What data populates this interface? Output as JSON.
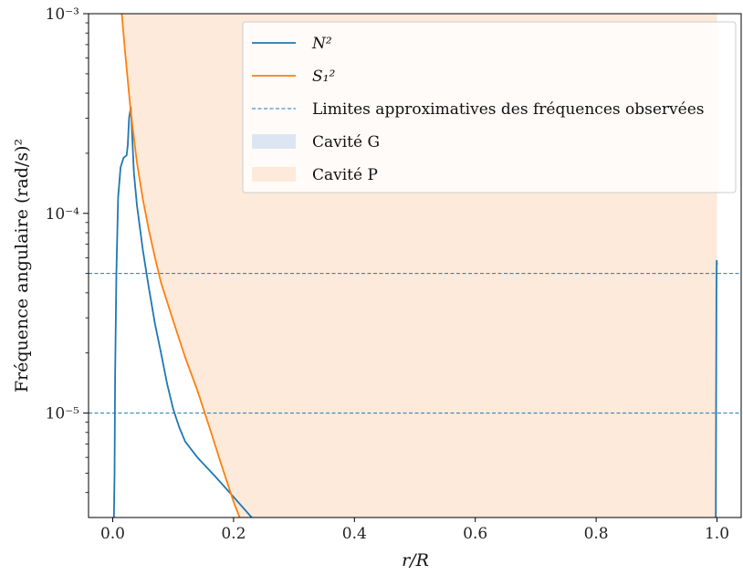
{
  "chart_data": {
    "type": "line",
    "xlabel": "r/R",
    "ylabel": "Fréquence angulaire (rad/s)²",
    "xlim": [
      -0.04,
      1.04
    ],
    "ylim": [
      3e-06,
      0.001
    ],
    "yscale": "log",
    "x_ticks": [
      0.0,
      0.2,
      0.4,
      0.6,
      0.8,
      1.0
    ],
    "x_tick_labels": [
      "0.0",
      "0.2",
      "0.4",
      "0.6",
      "0.8",
      "1.0"
    ],
    "y_major_ticks": [
      1e-05,
      0.0001,
      0.001
    ],
    "y_tick_labels": [
      "10⁻⁵",
      "10⁻⁴",
      "10⁻³"
    ],
    "grid": false,
    "legend_position": "upper right",
    "series": [
      {
        "name": "N²",
        "color": "#1f77b4",
        "style": "solid",
        "points": [
          [
            0.002,
            3e-06
          ],
          [
            0.003,
            5e-06
          ],
          [
            0.004,
            1.5e-05
          ],
          [
            0.006,
            5e-05
          ],
          [
            0.009,
            0.00012
          ],
          [
            0.013,
            0.00017
          ],
          [
            0.018,
            0.00019
          ],
          [
            0.023,
            0.000195
          ],
          [
            0.025,
            0.00022
          ],
          [
            0.027,
            0.0003
          ],
          [
            0.03,
            0.00034
          ],
          [
            0.032,
            0.00025
          ],
          [
            0.035,
            0.00016
          ],
          [
            0.04,
            0.00011
          ],
          [
            0.05,
            6.5e-05
          ],
          [
            0.06,
            4.2e-05
          ],
          [
            0.07,
            2.8e-05
          ],
          [
            0.08,
            2e-05
          ],
          [
            0.09,
            1.4e-05
          ],
          [
            0.1,
            1.05e-05
          ],
          [
            0.11,
            8.5e-06
          ],
          [
            0.12,
            7.2e-06
          ],
          [
            0.14,
            6e-06
          ],
          [
            0.17,
            4.8e-06
          ],
          [
            0.2,
            3.8e-06
          ],
          [
            0.23,
            3e-06
          ]
        ]
      },
      {
        "name": "N²",
        "color": "#1f77b4",
        "style": "solid",
        "points": [
          [
            0.998,
            3e-06
          ],
          [
            0.9985,
            1e-05
          ],
          [
            0.999,
            4e-05
          ],
          [
            0.9995,
            5.8e-05
          ],
          [
            1.0,
            5.5e-05
          ]
        ]
      },
      {
        "name": "S₁²",
        "color": "#ff7f0e",
        "style": "solid",
        "points": [
          [
            0.015,
            0.001
          ],
          [
            0.02,
            0.00067
          ],
          [
            0.03,
            0.00032
          ],
          [
            0.04,
            0.00018
          ],
          [
            0.05,
            0.000117
          ],
          [
            0.06,
            8.2e-05
          ],
          [
            0.07,
            6e-05
          ],
          [
            0.08,
            4.5e-05
          ],
          [
            0.1,
            2.9e-05
          ],
          [
            0.12,
            1.9e-05
          ],
          [
            0.14,
            1.3e-05
          ],
          [
            0.16,
            8.5e-06
          ],
          [
            0.18,
            5.5e-06
          ],
          [
            0.2,
            3.6e-06
          ],
          [
            0.21,
            3e-06
          ]
        ]
      },
      {
        "name": "Limites approximatives des fréquences observées",
        "color": "#1f77b4",
        "style": "dashed",
        "levels": [
          5e-05,
          1e-05
        ]
      }
    ],
    "regions": [
      {
        "name": "Cavité G",
        "color": "#dce6f2",
        "x_range": null
      },
      {
        "name": "Cavité P",
        "color": "#fdeadb",
        "boundary": "S₁² curve",
        "x_max": 1.0
      }
    ],
    "legend": [
      {
        "label": "N²",
        "kind": "line",
        "color": "#1f77b4"
      },
      {
        "label": "S₁²",
        "kind": "line",
        "color": "#ff7f0e"
      },
      {
        "label": "Limites approximatives des fréquences observées",
        "kind": "dashed",
        "color": "#1f77b4"
      },
      {
        "label": "Cavité G",
        "kind": "patch",
        "color": "#dce6f2"
      },
      {
        "label": "Cavité P",
        "kind": "patch",
        "color": "#fdeadb"
      }
    ]
  }
}
